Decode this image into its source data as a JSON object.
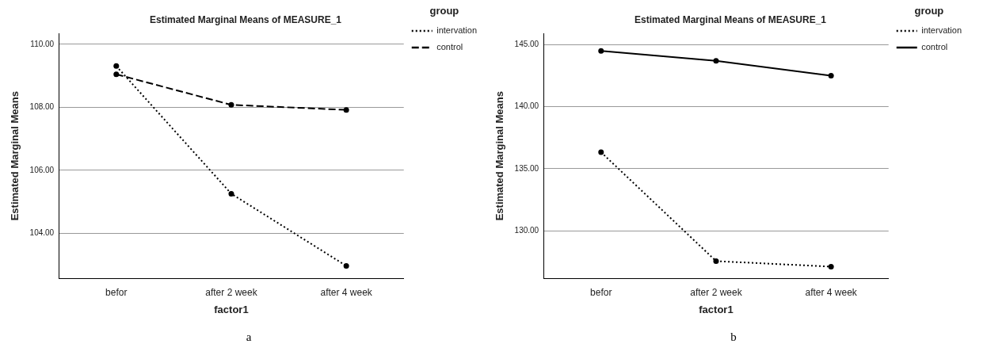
{
  "chart_data": [
    {
      "type": "line",
      "title": "Estimated Marginal Means of MEASURE_1",
      "xlabel": "factor1",
      "ylabel": "Estimated Marginal Means",
      "legend_title": "group",
      "categories": [
        "befor",
        "after 2 week",
        "after 4 week"
      ],
      "series": [
        {
          "name": "intervation",
          "color": "#000000",
          "values": [
            109.31,
            105.26,
            102.97
          ],
          "line_style": "dotted"
        },
        {
          "name": "control",
          "color": "#000000",
          "values": [
            109.05,
            108.08,
            107.92
          ],
          "line_style": "dashed"
        }
      ],
      "ylim": [
        102.58,
        110.34
      ],
      "yticks": [
        {
          "value": 104,
          "label": "104.00"
        },
        {
          "value": 106,
          "label": "106.00"
        },
        {
          "value": 108,
          "label": "108.00"
        },
        {
          "value": 110,
          "label": "110.00"
        }
      ],
      "grid": "y",
      "legend": "top right",
      "marker": "circle",
      "annotations": [
        "a"
      ]
    },
    {
      "type": "line",
      "title": "Estimated Marginal Means of MEASURE_1",
      "xlabel": "factor1",
      "ylabel": "Estimated Marginal Means",
      "legend_title": "group",
      "categories": [
        "befor",
        "after 2 week",
        "after 4 week"
      ],
      "series": [
        {
          "name": "intervation",
          "color": "#000000",
          "values": [
            136.33,
            127.55,
            127.1
          ],
          "line_style": "dotted"
        },
        {
          "name": "control",
          "color": "#000000",
          "values": [
            144.5,
            143.7,
            142.5
          ],
          "line_style": "solid"
        }
      ],
      "ylim": [
        126.17,
        145.9
      ],
      "yticks": [
        {
          "value": 130,
          "label": "130.00"
        },
        {
          "value": 135,
          "label": "135.00"
        },
        {
          "value": 140,
          "label": "140.00"
        },
        {
          "value": 145,
          "label": "145.00"
        }
      ],
      "grid": "y",
      "legend": "top right",
      "marker": "circle",
      "annotations": [
        "b"
      ]
    }
  ]
}
